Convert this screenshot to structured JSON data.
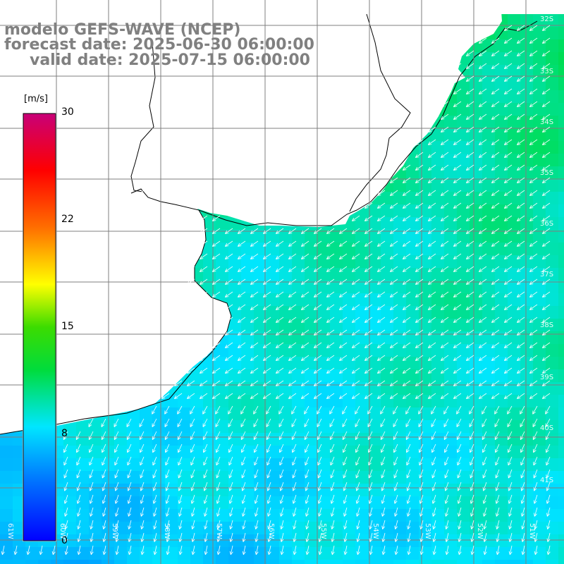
{
  "title": {
    "line1": "modelo GEFS-WAVE (NCEP)",
    "line2": "forecast date: 2025-06-30 06:00:00",
    "line3": "valid date: 2025-07-15 06:00:00"
  },
  "colorbar": {
    "unit": "[m/s]",
    "ticks": [
      "30",
      "22",
      "15",
      "8",
      "0"
    ],
    "min": 0,
    "max": 30
  },
  "longitude_labels": [
    "61W",
    "60W",
    "59W",
    "58W",
    "57W",
    "56W",
    "55W",
    "54W",
    "53W",
    "52W",
    "51W"
  ],
  "latitude_labels": [
    "32S",
    "33S",
    "34S",
    "35S",
    "36S",
    "37S",
    "38S",
    "39S",
    "40S",
    "41S"
  ],
  "colors": {
    "wind_low": "#1e90ff",
    "wind_mid": "#00e5ff",
    "wind_high": "#00ff7f",
    "land": "#ffffff",
    "grid": "#808080",
    "title": "#808080"
  },
  "chart_data": {
    "type": "heatmap",
    "variable": "wind speed",
    "unit": "m/s",
    "value_range": [
      0,
      30
    ],
    "typical_values": {
      "south": 6,
      "central": 8.5,
      "northeast": 10
    },
    "vector_direction": "southwest"
  }
}
